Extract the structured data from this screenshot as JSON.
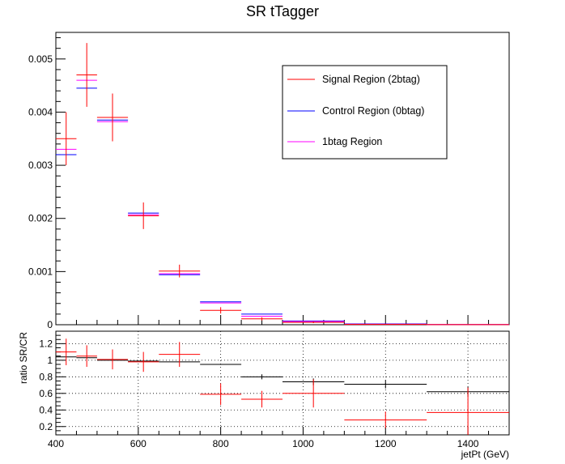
{
  "title": "SR tTagger",
  "chart_data": [
    {
      "type": "scatter",
      "title": "SR tTagger",
      "xlabel": "",
      "ylabel": "",
      "xlim": [
        400,
        1500
      ],
      "ylim": [
        0,
        0.0055
      ],
      "y_ticks": [
        "0",
        "0.001",
        "0.002",
        "0.003",
        "0.004",
        "0.005"
      ],
      "legend_position": "top-right",
      "series": [
        {
          "name": "Signal Region (2btag)",
          "color": "#ff0000",
          "points": [
            {
              "x": 425,
              "xerr": 25,
              "y": 0.0035,
              "yerr": 0.0005
            },
            {
              "x": 475,
              "xerr": 25,
              "y": 0.0047,
              "yerr": 0.0006
            },
            {
              "x": 537.5,
              "xerr": 37.5,
              "y": 0.0039,
              "yerr": 0.00045
            },
            {
              "x": 612.5,
              "xerr": 37.5,
              "y": 0.00205,
              "yerr": 0.00025
            },
            {
              "x": 700,
              "xerr": 50,
              "y": 0.00101,
              "yerr": 0.00012
            },
            {
              "x": 800,
              "xerr": 50,
              "y": 0.00027,
              "yerr": 6e-05
            },
            {
              "x": 900,
              "xerr": 50,
              "y": 0.00011,
              "yerr": 3e-05
            },
            {
              "x": 1025,
              "xerr": 75,
              "y": 4.5e-05,
              "yerr": 1.5e-05
            },
            {
              "x": 1200,
              "xerr": 100,
              "y": 5e-06,
              "yerr": 3e-06
            },
            {
              "x": 1400,
              "xerr": 100,
              "y": 1.5e-06,
              "yerr": 1e-06
            }
          ]
        },
        {
          "name": "Control Region (0btag)",
          "color": "#0000ff",
          "points": [
            {
              "x": 425,
              "xerr": 25,
              "y": 0.0032,
              "yerr": 0
            },
            {
              "x": 475,
              "xerr": 25,
              "y": 0.00445,
              "yerr": 0
            },
            {
              "x": 537.5,
              "xerr": 37.5,
              "y": 0.00385,
              "yerr": 0
            },
            {
              "x": 612.5,
              "xerr": 37.5,
              "y": 0.0021,
              "yerr": 0
            },
            {
              "x": 700,
              "xerr": 50,
              "y": 0.00094,
              "yerr": 0
            },
            {
              "x": 800,
              "xerr": 50,
              "y": 0.00043,
              "yerr": 0
            },
            {
              "x": 900,
              "xerr": 50,
              "y": 0.0002,
              "yerr": 0
            },
            {
              "x": 1025,
              "xerr": 75,
              "y": 7e-05,
              "yerr": 0
            },
            {
              "x": 1200,
              "xerr": 100,
              "y": 1.5e-05,
              "yerr": 0
            },
            {
              "x": 1400,
              "xerr": 100,
              "y": 4e-06,
              "yerr": 0
            }
          ]
        },
        {
          "name": "1btag Region",
          "color": "#ff00ff",
          "points": [
            {
              "x": 425,
              "xerr": 25,
              "y": 0.0033,
              "yerr": 0
            },
            {
              "x": 475,
              "xerr": 25,
              "y": 0.0046,
              "yerr": 0
            },
            {
              "x": 537.5,
              "xerr": 37.5,
              "y": 0.00382,
              "yerr": 0
            },
            {
              "x": 612.5,
              "xerr": 37.5,
              "y": 0.00207,
              "yerr": 0
            },
            {
              "x": 700,
              "xerr": 50,
              "y": 0.00096,
              "yerr": 0
            },
            {
              "x": 800,
              "xerr": 50,
              "y": 0.00041,
              "yerr": 0
            },
            {
              "x": 900,
              "xerr": 50,
              "y": 0.00016,
              "yerr": 0
            },
            {
              "x": 1025,
              "xerr": 75,
              "y": 6e-05,
              "yerr": 0
            },
            {
              "x": 1200,
              "xerr": 100,
              "y": 1e-05,
              "yerr": 0
            },
            {
              "x": 1400,
              "xerr": 100,
              "y": 3e-06,
              "yerr": 0
            }
          ]
        }
      ]
    },
    {
      "type": "scatter",
      "title": "",
      "xlabel": "jetPt (GeV)",
      "ylabel": "ratio SR/CR",
      "xlim": [
        400,
        1500
      ],
      "ylim": [
        0.1,
        1.35
      ],
      "x_ticks": [
        "400",
        "600",
        "800",
        "1000",
        "1200",
        "1400"
      ],
      "y_ticks": [
        "0.2",
        "0.4",
        "0.6",
        "0.8",
        "1",
        "1.2"
      ],
      "grid": true,
      "series": [
        {
          "color": "#ff0000",
          "points": [
            {
              "x": 425,
              "xerr": 25,
              "y": 1.1,
              "yerr": 0.16
            },
            {
              "x": 475,
              "xerr": 25,
              "y": 1.05,
              "yerr": 0.13
            },
            {
              "x": 537.5,
              "xerr": 37.5,
              "y": 1.01,
              "yerr": 0.12
            },
            {
              "x": 612.5,
              "xerr": 37.5,
              "y": 0.98,
              "yerr": 0.12
            },
            {
              "x": 700,
              "xerr": 50,
              "y": 1.07,
              "yerr": 0.15
            },
            {
              "x": 800,
              "xerr": 50,
              "y": 0.59,
              "yerr": 0.13
            },
            {
              "x": 900,
              "xerr": 50,
              "y": 0.53,
              "yerr": 0.1
            },
            {
              "x": 1025,
              "xerr": 75,
              "y": 0.6,
              "yerr": 0.17
            },
            {
              "x": 1200,
              "xerr": 100,
              "y": 0.28,
              "yerr": 0.1
            },
            {
              "x": 1400,
              "xerr": 100,
              "y": 0.37,
              "yerr": 0.3
            }
          ]
        },
        {
          "color": "#000000",
          "points": [
            {
              "x": 425,
              "xerr": 25,
              "y": 1.04,
              "yerr": 0
            },
            {
              "x": 475,
              "xerr": 25,
              "y": 1.03,
              "yerr": 0
            },
            {
              "x": 537.5,
              "xerr": 37.5,
              "y": 1.0,
              "yerr": 0
            },
            {
              "x": 612.5,
              "xerr": 37.5,
              "y": 0.99,
              "yerr": 0
            },
            {
              "x": 700,
              "xerr": 50,
              "y": 0.98,
              "yerr": 0
            },
            {
              "x": 800,
              "xerr": 50,
              "y": 0.95,
              "yerr": 0
            },
            {
              "x": 900,
              "xerr": 50,
              "y": 0.8,
              "yerr": 0.03
            },
            {
              "x": 1025,
              "xerr": 75,
              "y": 0.74,
              "yerr": 0.04
            },
            {
              "x": 1200,
              "xerr": 100,
              "y": 0.71,
              "yerr": 0.05
            },
            {
              "x": 1400,
              "xerr": 100,
              "y": 0.62,
              "yerr": 0.06
            }
          ]
        }
      ]
    }
  ]
}
